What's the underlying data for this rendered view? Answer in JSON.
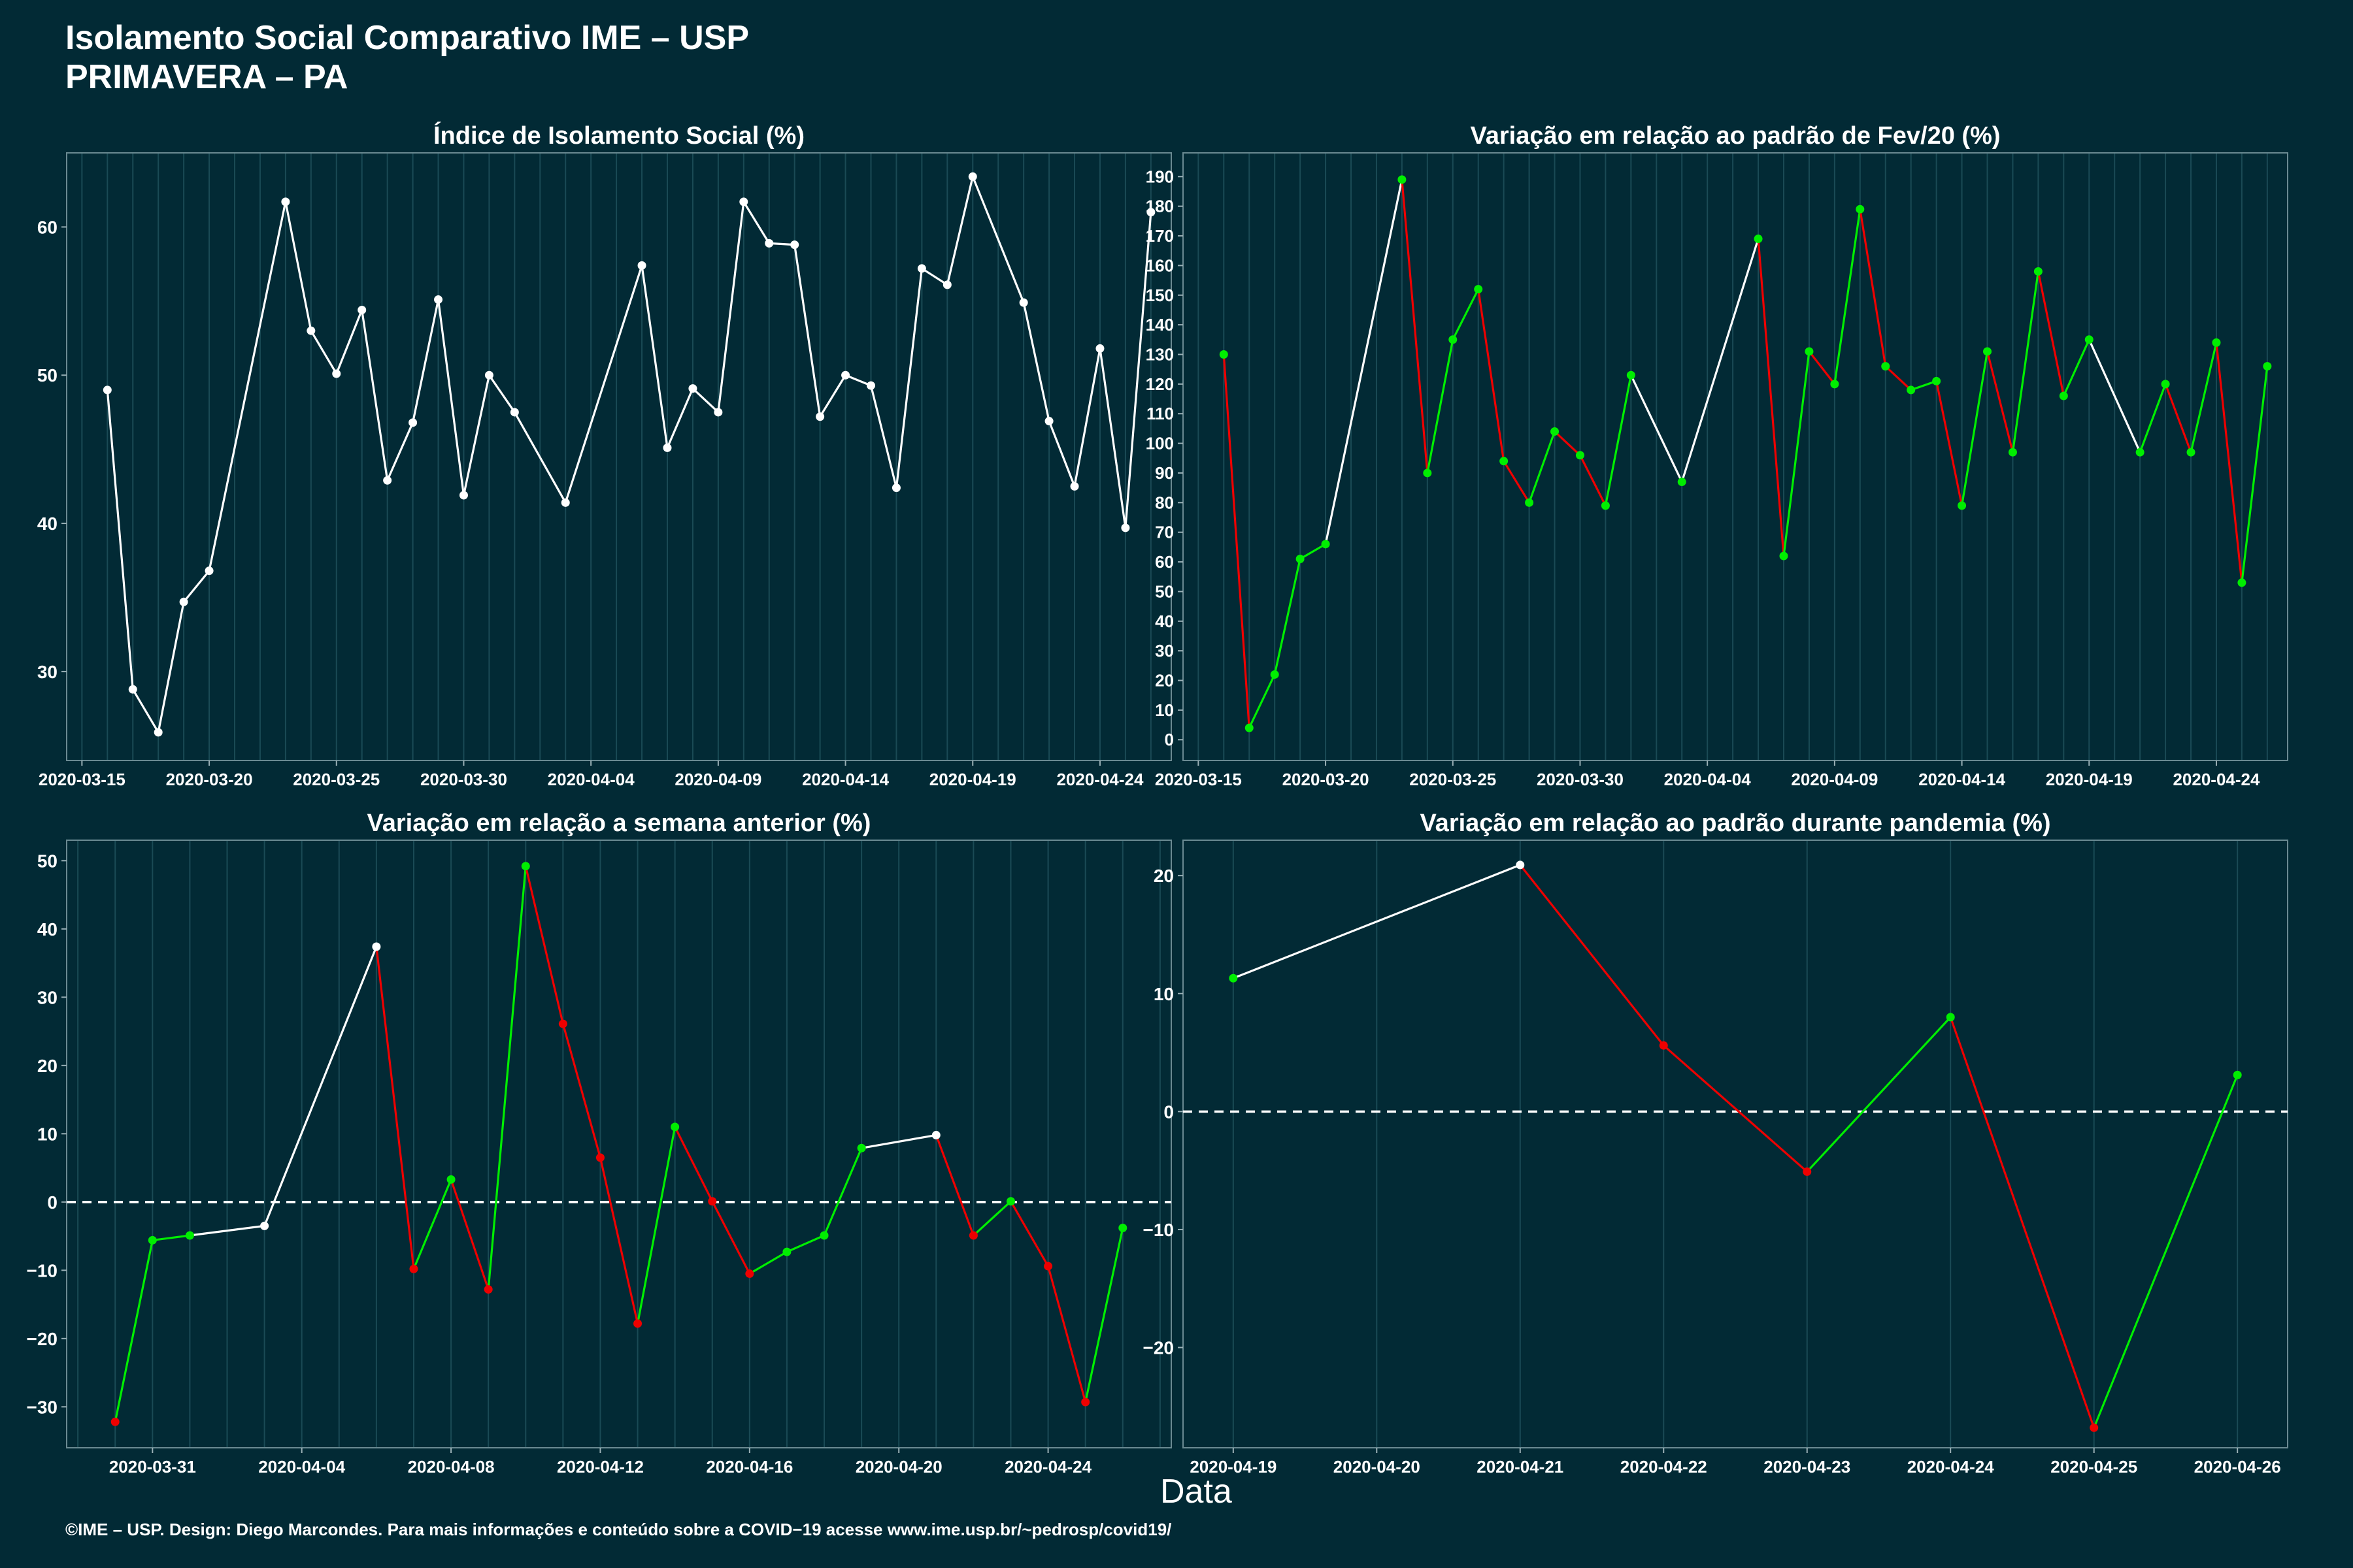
{
  "header": {
    "title": "Isolamento Social Comparativo IME – USP",
    "subtitle": "PRIMAVERA – PA"
  },
  "footer": "©IME – USP. Design: Diego Marcondes. Para mais informações e conteúdo sobre a COVID−19 acesse www.ime.usp.br/~pedrosp/covid19/",
  "xlabel": "Data",
  "colors": {
    "background": "#022a35",
    "line": "#ffffff",
    "increase": "#00ee00",
    "decrease": "#ee0000",
    "grid": "#1a4a55"
  },
  "chart_data": [
    {
      "id": "isolamento",
      "type": "line",
      "title": "Índice de Isolamento Social (%)",
      "x_start": "2020-03-16",
      "x_lim": [
        -1.6,
        41.8
      ],
      "y_lim": [
        24,
        65
      ],
      "y_ticks": [
        30,
        40,
        50,
        60
      ],
      "x_ticks": [
        [
          "2020-03-15",
          -1
        ],
        [
          "2020-03-20",
          4
        ],
        [
          "2020-03-25",
          9
        ],
        [
          "2020-03-30",
          14
        ],
        [
          "2020-04-04",
          19
        ],
        [
          "2020-04-09",
          24
        ],
        [
          "2020-04-14",
          29
        ],
        [
          "2020-04-19",
          34
        ],
        [
          "2020-04-24",
          39
        ]
      ],
      "points": [
        [
          0,
          49.0
        ],
        [
          1,
          28.8
        ],
        [
          2,
          25.9
        ],
        [
          3,
          34.7
        ],
        [
          4,
          36.8
        ],
        [
          7,
          61.7
        ],
        [
          8,
          53.0
        ],
        [
          9,
          50.1
        ],
        [
          10,
          54.4
        ],
        [
          11,
          42.9
        ],
        [
          12,
          46.8
        ],
        [
          13,
          55.1
        ],
        [
          14,
          41.9
        ],
        [
          15,
          50.0
        ],
        [
          16,
          47.5
        ],
        [
          18,
          41.4
        ],
        [
          21,
          57.4
        ],
        [
          22,
          45.1
        ],
        [
          23,
          49.1
        ],
        [
          24,
          47.5
        ],
        [
          25,
          61.7
        ],
        [
          26,
          58.9
        ],
        [
          27,
          58.8
        ],
        [
          28,
          47.2
        ],
        [
          29,
          50.0
        ],
        [
          30,
          49.3
        ],
        [
          31,
          42.4
        ],
        [
          32,
          57.2
        ],
        [
          33,
          56.1
        ],
        [
          34,
          63.4
        ],
        [
          36,
          54.9
        ],
        [
          37,
          46.9
        ],
        [
          38,
          42.5
        ],
        [
          39,
          51.8
        ],
        [
          40,
          39.7
        ],
        [
          41,
          61.0
        ]
      ],
      "colored": false
    },
    {
      "id": "fev",
      "type": "line",
      "title": "Variação em relação ao padrão de Fev/20 (%)",
      "x_start": "2020-03-16",
      "x_lim": [
        -1.6,
        41.8
      ],
      "y_lim": [
        -7,
        198
      ],
      "y_ticks": [
        0,
        10,
        20,
        30,
        40,
        50,
        60,
        70,
        80,
        90,
        100,
        110,
        120,
        130,
        140,
        150,
        160,
        170,
        180,
        190
      ],
      "x_ticks": [
        [
          "2020-03-15",
          -1
        ],
        [
          "2020-03-20",
          4
        ],
        [
          "2020-03-25",
          9
        ],
        [
          "2020-03-30",
          14
        ],
        [
          "2020-04-04",
          19
        ],
        [
          "2020-04-09",
          24
        ],
        [
          "2020-04-14",
          29
        ],
        [
          "2020-04-19",
          34
        ],
        [
          "2020-04-24",
          39
        ]
      ],
      "points": [
        [
          0,
          130
        ],
        [
          1,
          4
        ],
        [
          2,
          22
        ],
        [
          3,
          61
        ],
        [
          4,
          66
        ],
        [
          7,
          189
        ],
        [
          8,
          90
        ],
        [
          9,
          135
        ],
        [
          10,
          152
        ],
        [
          11,
          94
        ],
        [
          12,
          80
        ],
        [
          13,
          104
        ],
        [
          14,
          96
        ],
        [
          15,
          79
        ],
        [
          16,
          123
        ],
        [
          18,
          87
        ],
        [
          21,
          169
        ],
        [
          22,
          62
        ],
        [
          23,
          131
        ],
        [
          24,
          120
        ],
        [
          25,
          179
        ],
        [
          26,
          126
        ],
        [
          27,
          118
        ],
        [
          28,
          121
        ],
        [
          29,
          79
        ],
        [
          30,
          131
        ],
        [
          31,
          97
        ],
        [
          32,
          158
        ],
        [
          33,
          116
        ],
        [
          34,
          135
        ],
        [
          36,
          97
        ],
        [
          37,
          120
        ],
        [
          38,
          97
        ],
        [
          39,
          134
        ],
        [
          40,
          53
        ],
        [
          41,
          126
        ]
      ],
      "colored": true,
      "point_color": "green"
    },
    {
      "id": "semana",
      "type": "line",
      "title": "Variação em relação a semana anterior (%)",
      "x_start": "2020-03-30",
      "x_lim": [
        -1.3,
        28.3
      ],
      "y_lim": [
        -36,
        53
      ],
      "y_ticks": [
        -30,
        -20,
        -10,
        0,
        10,
        20,
        30,
        40,
        50
      ],
      "x_ticks": [
        [
          "2020-03-31",
          1
        ],
        [
          "2020-04-04",
          5
        ],
        [
          "2020-04-08",
          9
        ],
        [
          "2020-04-12",
          13
        ],
        [
          "2020-04-16",
          17
        ],
        [
          "2020-04-20",
          21
        ],
        [
          "2020-04-24",
          25
        ]
      ],
      "points": [
        [
          0,
          -32.2
        ],
        [
          1,
          -5.6
        ],
        [
          2,
          -4.9
        ],
        [
          4,
          -3.5
        ],
        [
          7,
          37.4
        ],
        [
          8,
          -9.8
        ],
        [
          9,
          3.3
        ],
        [
          10,
          -12.8
        ],
        [
          11,
          49.2
        ],
        [
          12,
          26.1
        ],
        [
          13,
          6.5
        ],
        [
          14,
          -17.8
        ],
        [
          15,
          11.0
        ],
        [
          16,
          0.1
        ],
        [
          17,
          -10.5
        ],
        [
          18,
          -7.3
        ],
        [
          19,
          -4.9
        ],
        [
          20,
          7.9
        ],
        [
          22,
          9.8
        ],
        [
          23,
          -4.9
        ],
        [
          24,
          0.1
        ],
        [
          25,
          -9.4
        ],
        [
          26,
          -29.3
        ],
        [
          27,
          -3.8
        ]
      ],
      "colored": true,
      "reference_line": 0
    },
    {
      "id": "pandemia",
      "type": "line",
      "title": "Variação em relação ao padrão durante pandemia (%)",
      "x_start": "2020-04-19",
      "x_lim": [
        -0.35,
        7.35
      ],
      "y_lim": [
        -28.5,
        23
      ],
      "y_ticks": [
        -20,
        -10,
        0,
        10,
        20
      ],
      "x_ticks": [
        [
          "2020-04-19",
          0
        ],
        [
          "2020-04-20",
          1
        ],
        [
          "2020-04-21",
          2
        ],
        [
          "2020-04-22",
          3
        ],
        [
          "2020-04-23",
          4
        ],
        [
          "2020-04-24",
          5
        ],
        [
          "2020-04-25",
          6
        ],
        [
          "2020-04-26",
          7
        ]
      ],
      "points": [
        [
          0,
          11.3
        ],
        [
          2,
          20.9
        ],
        [
          3,
          5.6
        ],
        [
          4,
          -5.1
        ],
        [
          5,
          8.0
        ],
        [
          6,
          -26.8
        ],
        [
          7,
          3.1
        ]
      ],
      "colored": true,
      "reference_line": 0
    }
  ]
}
